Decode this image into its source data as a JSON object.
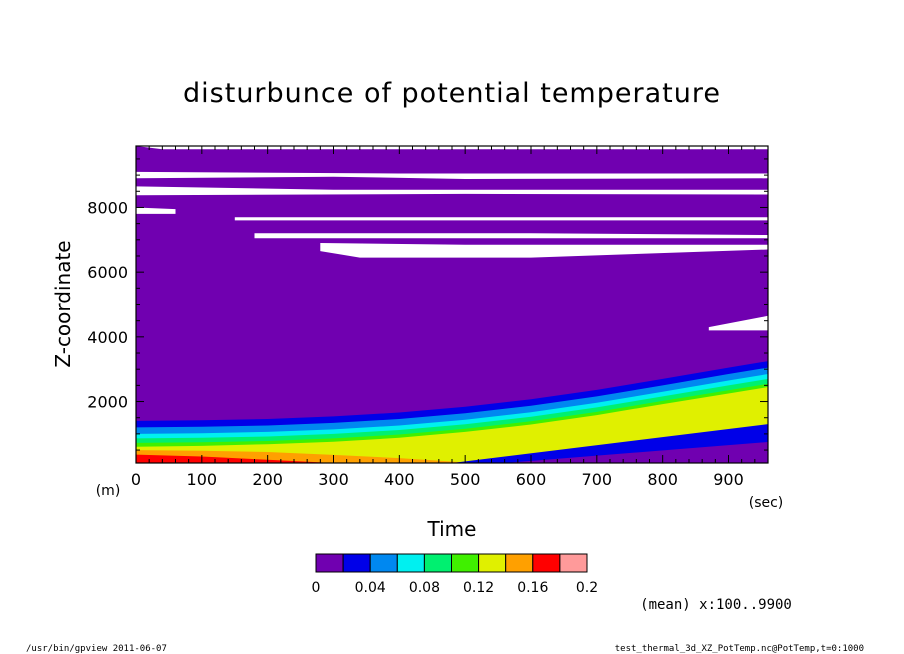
{
  "chart_data": {
    "type": "contour",
    "title": "disturbunce of potential temperature",
    "xlabel": "Time",
    "x_unit": "(sec)",
    "ylabel": "Z-coordinate",
    "y_unit": "(m)",
    "xlim": [
      0,
      960
    ],
    "ylim": [
      100,
      9900
    ],
    "x_ticks": [
      0,
      100,
      200,
      300,
      400,
      500,
      600,
      700,
      800,
      900
    ],
    "y_ticks": [
      2000,
      4000,
      6000,
      8000
    ],
    "colorbar": {
      "levels": [
        0,
        0.02,
        0.04,
        0.06,
        0.08,
        0.1,
        0.12,
        0.14,
        0.16,
        0.18,
        0.2
      ],
      "tick_labels": [
        "0",
        "0.04",
        "0.08",
        "0.12",
        "0.16",
        "0.2"
      ],
      "colors": [
        "#7000b0",
        "#0000e8",
        "#0088f0",
        "#00f0f0",
        "#00f070",
        "#40f000",
        "#e0f000",
        "#ffa000",
        "#ff0000",
        "#ff9a9a"
      ]
    },
    "below_range_color": "#ffffff",
    "fields": {
      "thermal_layers_top_height_m": {
        "time_s": [
          0,
          100,
          200,
          300,
          400,
          500,
          600,
          700,
          800,
          900,
          960
        ],
        "purple_top": [
          1580,
          1600,
          1640,
          1720,
          1840,
          2020,
          2250,
          2550,
          2900,
          3250,
          3450
        ],
        "blue_top": [
          1400,
          1420,
          1460,
          1540,
          1660,
          1840,
          2070,
          2360,
          2700,
          3050,
          3250
        ],
        "lightblue_top": [
          1200,
          1220,
          1260,
          1340,
          1460,
          1640,
          1870,
          2160,
          2500,
          2850,
          3050
        ],
        "cyan_top": [
          1000,
          1020,
          1060,
          1140,
          1260,
          1440,
          1670,
          1960,
          2300,
          2650,
          2850
        ],
        "green_top": [
          860,
          880,
          920,
          1000,
          1120,
          1300,
          1530,
          1820,
          2160,
          2500,
          2700
        ],
        "lightgreen_top": [
          720,
          740,
          780,
          860,
          980,
          1160,
          1390,
          1680,
          2020,
          2350,
          2550
        ],
        "yellow_top": [
          600,
          630,
          680,
          760,
          880,
          1060,
          1290,
          1580,
          1920,
          2250,
          2450
        ],
        "orange_top": [
          500,
          480,
          440,
          350,
          250,
          120,
          100,
          100,
          100,
          100,
          100
        ],
        "red_top": [
          360,
          300,
          200,
          100,
          100,
          100,
          100,
          100,
          100,
          100,
          100
        ]
      }
    }
  },
  "annotations": {
    "mean_label": "(mean) x:100..9900",
    "footer_left": "/usr/bin/gpview   2011-06-07",
    "footer_right": "test_thermal_3d_XZ_PotTemp.nc@PotTemp,t=0:1000"
  }
}
